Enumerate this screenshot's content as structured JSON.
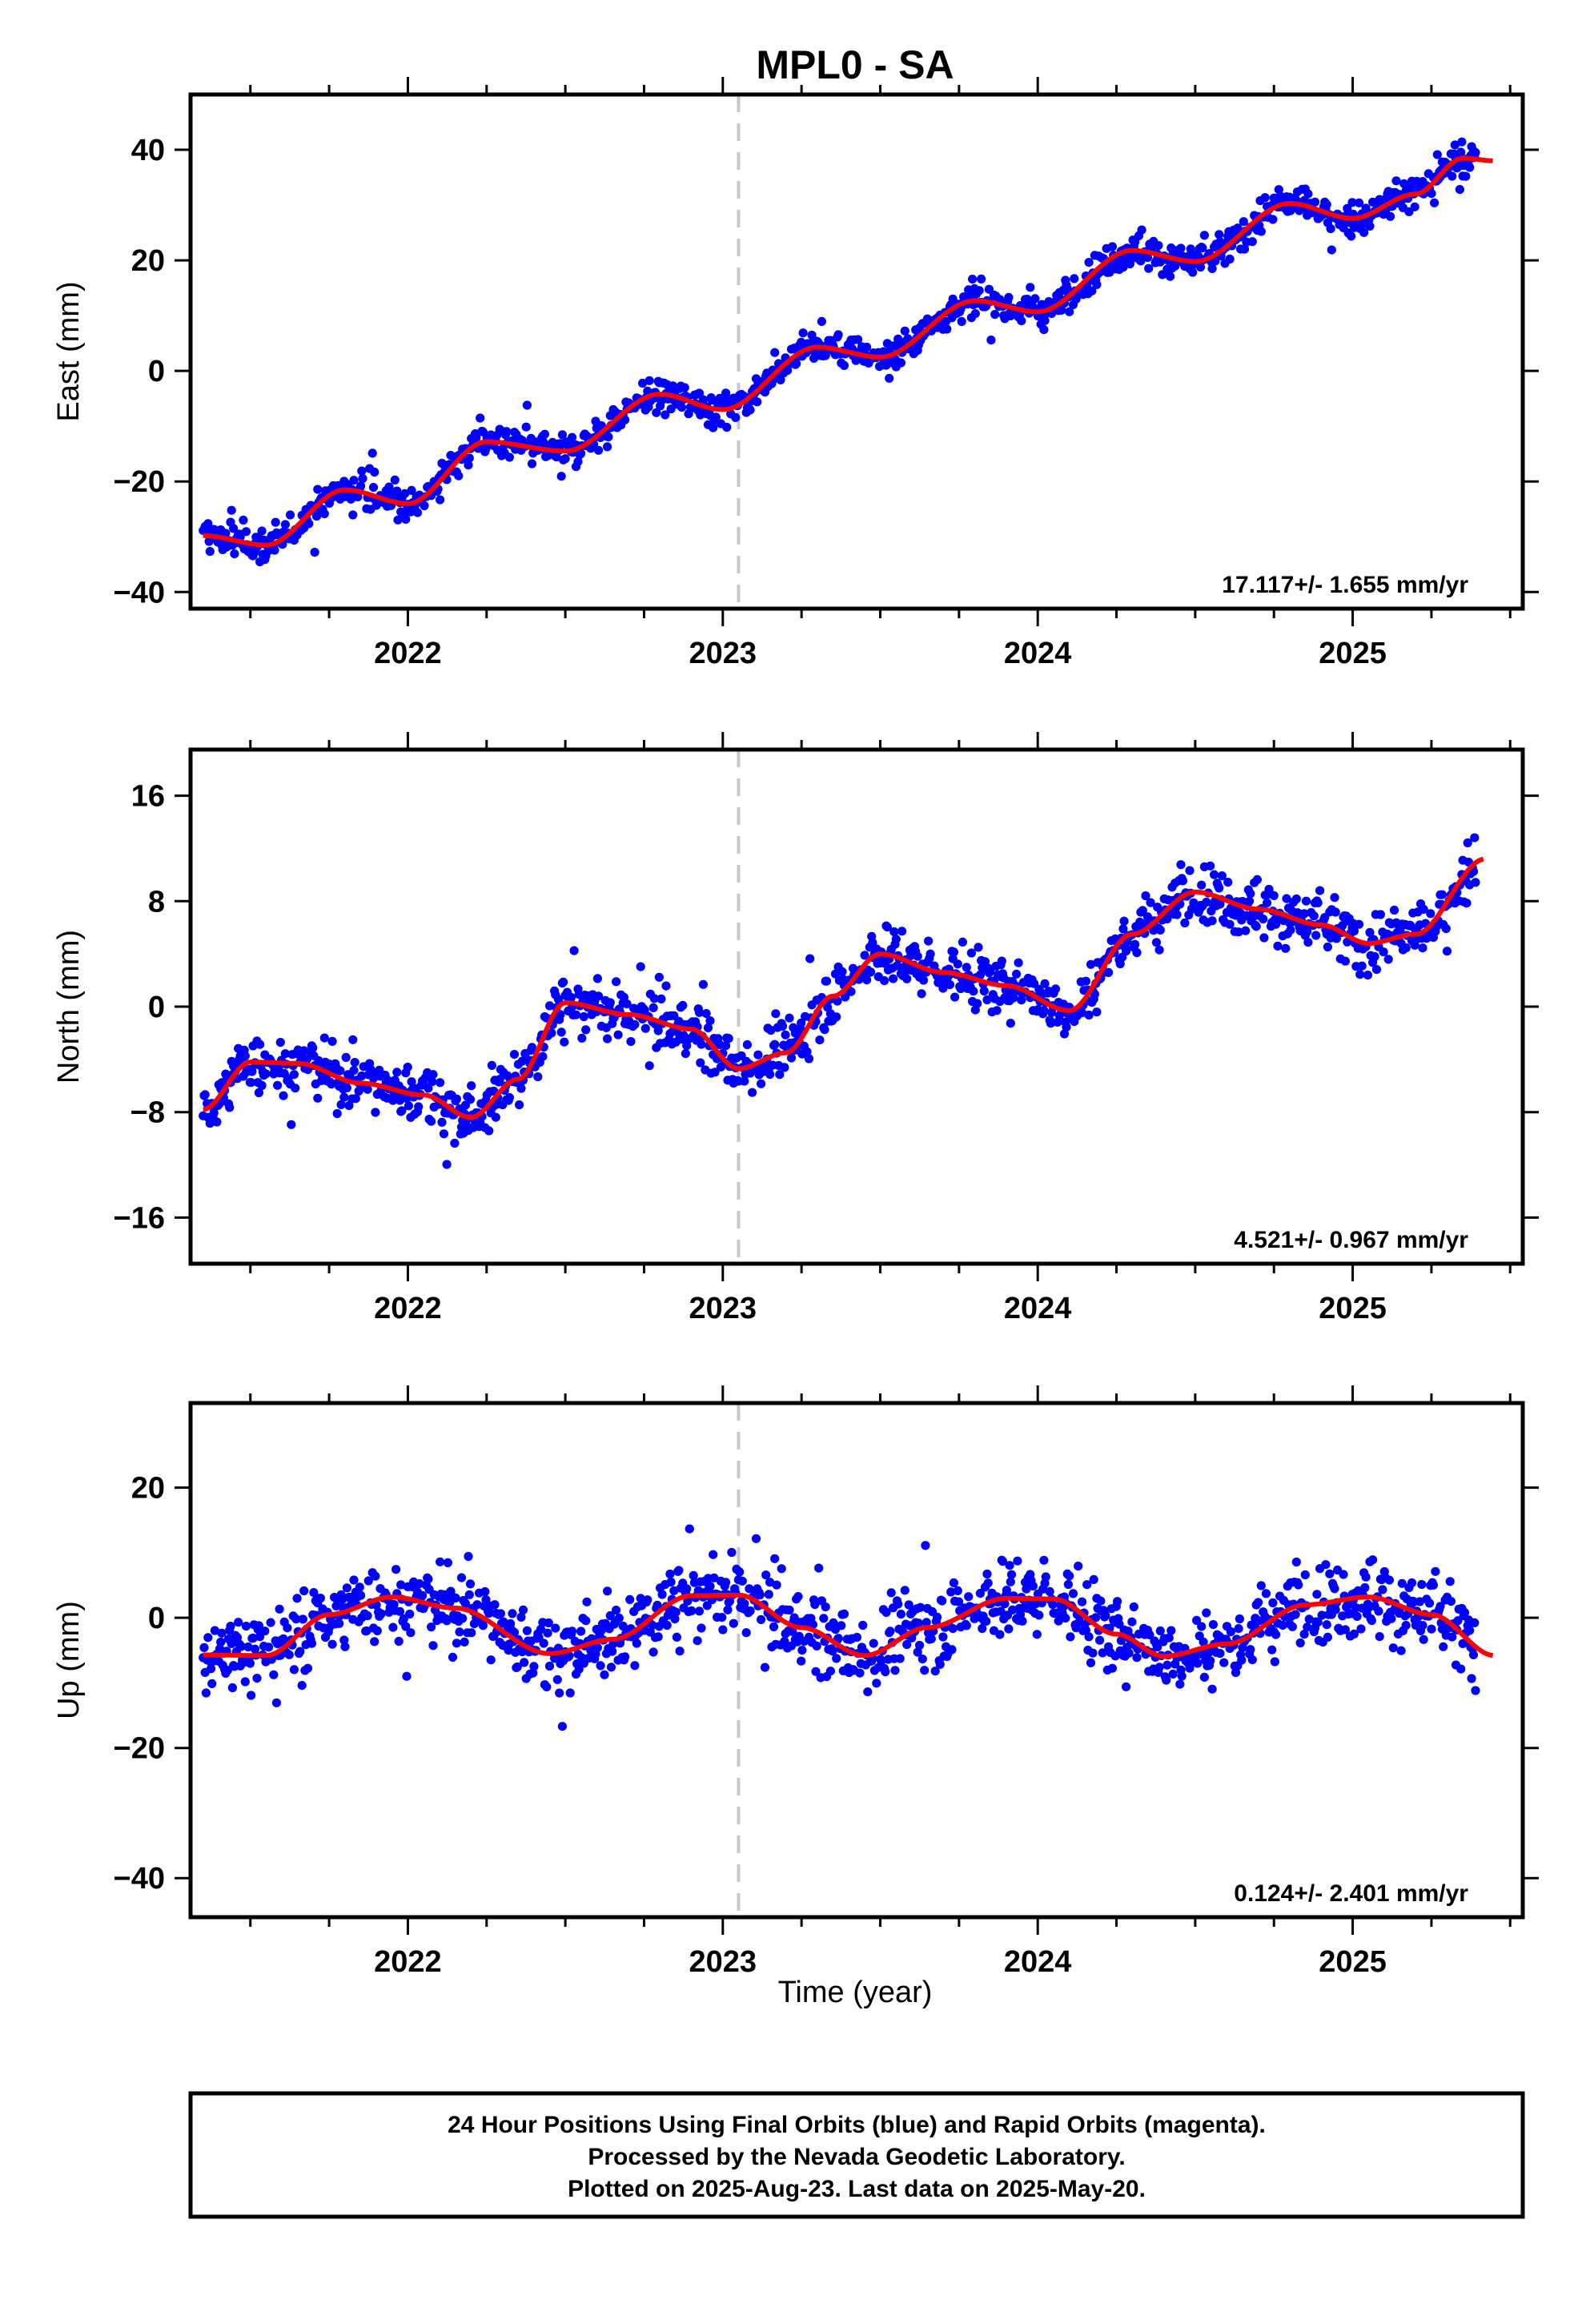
{
  "title": "MPL0 - SA",
  "x_axis_label": "Time (year)",
  "x_tick_labels": [
    "2022",
    "2023",
    "2024",
    "2025"
  ],
  "footer_lines": [
    "24 Hour Positions Using Final Orbits (blue) and Rapid Orbits (magenta).",
    "Processed by the Nevada Geodetic Laboratory.",
    "Plotted on 2025-Aug-23. Last data on 2025-May-20."
  ],
  "colors": {
    "points": "#0000ff",
    "fit": "#ff0000",
    "marker_line": "#c8c8c8"
  },
  "chart_data": [
    {
      "type": "scatter",
      "ylabel": "East (mm)",
      "rate_label": "17.117+/- 1.655 mm/yr",
      "xlim": [
        2021.31,
        2025.54
      ],
      "ylim": [
        -43,
        50
      ],
      "yticks": [
        -40,
        -20,
        0,
        20,
        40
      ],
      "vline_x": 2023.05,
      "trend": {
        "slope": 17.117,
        "intercept_at_2023": -4.5,
        "annual_amp": 1.5,
        "annual_phase": 0.3,
        "semi_amp": 2.0,
        "semi_phase": 0.9,
        "scatter": 4.5,
        "outlier_scatter": 12
      },
      "fit_points": [
        [
          2021.35,
          -29.8
        ],
        [
          2021.55,
          -31.5
        ],
        [
          2021.8,
          -21.5
        ],
        [
          2022.0,
          -24
        ],
        [
          2022.25,
          -12.8
        ],
        [
          2022.5,
          -14.5
        ],
        [
          2022.8,
          -4.2
        ],
        [
          2023.0,
          -7
        ],
        [
          2023.3,
          4.3
        ],
        [
          2023.5,
          2.5
        ],
        [
          2023.8,
          12.7
        ],
        [
          2024.0,
          10.7
        ],
        [
          2024.3,
          21.8
        ],
        [
          2024.5,
          19.8
        ],
        [
          2024.8,
          30.3
        ],
        [
          2025.0,
          27.6
        ],
        [
          2025.2,
          32
        ],
        [
          2025.35,
          38.5
        ],
        [
          2025.45,
          38
        ]
      ]
    },
    {
      "type": "scatter",
      "ylabel": "North (mm)",
      "rate_label": "4.521+/- 0.967 mm/yr",
      "xlim": [
        2021.31,
        2025.54
      ],
      "ylim": [
        -19.5,
        19.5
      ],
      "yticks": [
        -16,
        -8,
        0,
        8,
        16
      ],
      "vline_x": 2023.05,
      "trend": {
        "scatter": 3.3,
        "outlier_scatter": 7
      },
      "fit_points": [
        [
          2021.35,
          -7.8
        ],
        [
          2021.5,
          -4.2
        ],
        [
          2021.65,
          -4.3
        ],
        [
          2021.85,
          -5.8
        ],
        [
          2022.05,
          -6.7
        ],
        [
          2022.2,
          -8.4
        ],
        [
          2022.35,
          -5.5
        ],
        [
          2022.5,
          0.3
        ],
        [
          2022.7,
          -0.6
        ],
        [
          2022.9,
          -1.7
        ],
        [
          2023.05,
          -4.7
        ],
        [
          2023.2,
          -3.5
        ],
        [
          2023.35,
          0.8
        ],
        [
          2023.5,
          4.0
        ],
        [
          2023.7,
          2.6
        ],
        [
          2023.9,
          1.6
        ],
        [
          2024.1,
          -0.3
        ],
        [
          2024.3,
          5.5
        ],
        [
          2024.5,
          8.7
        ],
        [
          2024.7,
          7.4
        ],
        [
          2024.9,
          6.2
        ],
        [
          2025.05,
          4.8
        ],
        [
          2025.2,
          5.5
        ],
        [
          2025.42,
          11.2
        ]
      ]
    },
    {
      "type": "scatter",
      "ylabel": "Up (mm)",
      "rate_label": "0.124+/- 2.401 mm/yr",
      "xlim": [
        2021.31,
        2025.54
      ],
      "ylim": [
        -46,
        33
      ],
      "yticks": [
        -40,
        -20,
        0,
        20
      ],
      "vline_x": 2023.05,
      "trend": {
        "slope": 0.124,
        "annual_amp": 4.5,
        "annual_phase": 0.05,
        "scatter": 9,
        "outlier_scatter": 18
      },
      "fit_points": [
        [
          2021.35,
          -5.7
        ],
        [
          2021.55,
          -5.8
        ],
        [
          2021.75,
          0.5
        ],
        [
          2021.95,
          3.2
        ],
        [
          2022.15,
          1.5
        ],
        [
          2022.45,
          -5.5
        ],
        [
          2022.65,
          -3.3
        ],
        [
          2022.9,
          3.4
        ],
        [
          2023.05,
          3.5
        ],
        [
          2023.25,
          -1.5
        ],
        [
          2023.45,
          -5.8
        ],
        [
          2023.65,
          -1.5
        ],
        [
          2023.9,
          3.0
        ],
        [
          2024.05,
          2.9
        ],
        [
          2024.25,
          -2.5
        ],
        [
          2024.4,
          -5.9
        ],
        [
          2024.6,
          -4
        ],
        [
          2024.85,
          2.0
        ],
        [
          2025.05,
          3.2
        ],
        [
          2025.25,
          0.5
        ],
        [
          2025.45,
          -5.8
        ]
      ]
    }
  ]
}
